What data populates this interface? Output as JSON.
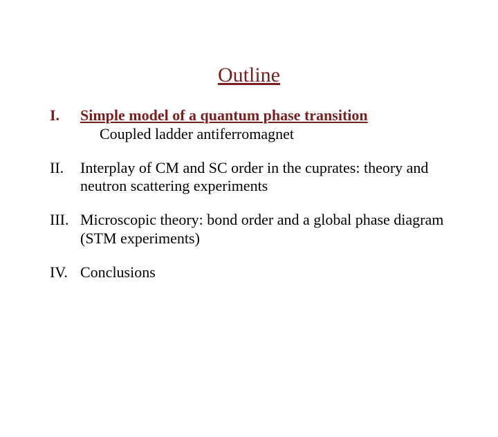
{
  "title": "Outline",
  "title_color": "#7a1e1e",
  "text_color": "#000000",
  "font_family": "Times New Roman",
  "title_fontsize": 30,
  "body_fontsize": 22,
  "items": [
    {
      "num": "I.",
      "title": "Simple model of a quantum phase transition",
      "subtitle": "Coupled ladder antiferromagnet",
      "highlighted": true
    },
    {
      "num": "II.",
      "title": "Interplay of CM and SC order in the cuprates: theory and neutron scattering experiments",
      "subtitle": "",
      "highlighted": false
    },
    {
      "num": "III.",
      "title": "Microscopic theory: bond order and a global phase diagram (STM experiments)",
      "subtitle": "",
      "highlighted": false
    },
    {
      "num": "IV.",
      "title": "Conclusions",
      "subtitle": "",
      "highlighted": false
    }
  ]
}
